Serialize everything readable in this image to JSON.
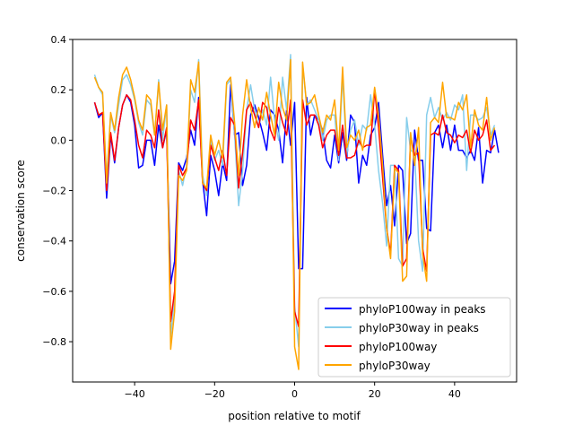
{
  "chart_data": {
    "type": "line",
    "title": "",
    "xlabel": "position relative to motif",
    "ylabel": "conservation score",
    "xlim": [
      -55.5,
      55.5
    ],
    "ylim": [
      -0.96,
      0.4
    ],
    "xticks": [
      -40,
      -20,
      0,
      20,
      40
    ],
    "xtick_labels": [
      "−40",
      "−20",
      "0",
      "20",
      "40"
    ],
    "yticks": [
      0.4,
      0.2,
      0.0,
      -0.2,
      -0.4,
      -0.6,
      -0.8
    ],
    "ytick_labels": [
      "0.4",
      "0.2",
      "0.0",
      "−0.2",
      "−0.4",
      "−0.6",
      "−0.8"
    ],
    "grid": false,
    "legend_position": "lower-right",
    "x_start": -50,
    "x_end": 50,
    "series": [
      {
        "name": "phyloP100way in peaks",
        "color": "#0000ff",
        "values": [
          0.15,
          0.09,
          0.11,
          -0.23,
          0.02,
          -0.09,
          0.05,
          0.14,
          0.18,
          0.15,
          0.06,
          -0.11,
          -0.1,
          0.0,
          0.0,
          -0.1,
          0.06,
          -0.03,
          0.04,
          -0.57,
          -0.48,
          -0.09,
          -0.12,
          -0.07,
          0.04,
          -0.02,
          0.17,
          -0.16,
          -0.3,
          -0.06,
          -0.12,
          -0.22,
          -0.09,
          -0.16,
          0.22,
          0.02,
          0.03,
          -0.18,
          -0.1,
          0.1,
          0.14,
          0.09,
          0.03,
          -0.04,
          0.12,
          0.1,
          0.04,
          -0.09,
          0.12,
          -0.02,
          0.15,
          -0.51,
          -0.51,
          0.17,
          0.02,
          0.1,
          0.08,
          0.04,
          -0.08,
          -0.11,
          0.02,
          -0.09,
          0.03,
          -0.08,
          0.1,
          0.07,
          -0.17,
          -0.06,
          -0.1,
          0.02,
          0.05,
          0.15,
          -0.06,
          -0.26,
          -0.18,
          -0.34,
          -0.1,
          -0.12,
          -0.41,
          -0.37,
          0.04,
          -0.08,
          -0.08,
          -0.35,
          -0.36,
          0.03,
          0.06,
          -0.03,
          0.06,
          -0.04,
          0.06,
          -0.04,
          -0.04,
          -0.07,
          -0.04,
          -0.08,
          0.05,
          -0.17,
          -0.04,
          -0.05,
          0.04,
          -0.05
        ]
      },
      {
        "name": "phyloP30way in peaks",
        "color": "#87ceeb",
        "values": [
          0.26,
          0.21,
          0.18,
          -0.15,
          0.1,
          0.03,
          0.14,
          0.24,
          0.26,
          0.22,
          0.16,
          0.07,
          0.02,
          0.16,
          0.14,
          0.02,
          0.24,
          0.0,
          0.14,
          -0.78,
          -0.62,
          -0.12,
          -0.18,
          -0.1,
          0.2,
          0.15,
          0.32,
          -0.14,
          -0.22,
          0.0,
          -0.08,
          -0.04,
          -0.1,
          0.22,
          0.24,
          0.02,
          -0.26,
          -0.12,
          0.12,
          0.22,
          0.12,
          0.05,
          0.12,
          0.06,
          0.25,
          0.08,
          0.0,
          0.25,
          0.12,
          0.34,
          -0.66,
          -0.82,
          0.3,
          0.14,
          0.16,
          0.12,
          0.08,
          0.0,
          0.08,
          0.1,
          0.1,
          -0.08,
          0.26,
          -0.06,
          0.04,
          0.08,
          -0.02,
          0.06,
          0.04,
          0.18,
          0.06,
          -0.12,
          -0.25,
          -0.42,
          -0.1,
          -0.1,
          -0.47,
          -0.5,
          0.09,
          -0.04,
          -0.05,
          -0.4,
          -0.52,
          0.1,
          0.17,
          0.09,
          0.13,
          0.08,
          0.11,
          0.08,
          0.14,
          0.12,
          0.18,
          -0.12,
          0.1,
          0.1,
          0.08,
          0.09,
          0.13,
          0.02,
          0.06
        ]
      },
      {
        "name": "phyloP100way",
        "color": "#ff0000",
        "values": [
          0.15,
          0.1,
          0.11,
          -0.2,
          0.03,
          -0.08,
          0.05,
          0.14,
          0.18,
          0.16,
          0.08,
          -0.02,
          -0.07,
          0.04,
          0.02,
          -0.03,
          0.12,
          -0.03,
          0.05,
          -0.72,
          -0.6,
          -0.1,
          -0.14,
          -0.11,
          0.08,
          0.04,
          0.16,
          -0.17,
          -0.2,
          -0.02,
          -0.07,
          -0.12,
          -0.04,
          -0.14,
          0.09,
          0.06,
          -0.19,
          -0.05,
          0.12,
          0.15,
          0.1,
          0.05,
          0.15,
          0.13,
          0.04,
          0.0,
          0.13,
          0.07,
          0.02,
          0.16,
          -0.68,
          -0.74,
          0.16,
          0.06,
          0.1,
          0.1,
          0.06,
          -0.03,
          0.02,
          0.04,
          0.04,
          -0.06,
          0.06,
          -0.07,
          -0.07,
          -0.06,
          0.0,
          -0.03,
          -0.02,
          -0.02,
          0.2,
          0.05,
          -0.15,
          -0.35,
          -0.45,
          -0.1,
          -0.12,
          -0.5,
          -0.47,
          0.02,
          -0.06,
          -0.05,
          -0.43,
          -0.52,
          0.02,
          0.03,
          0.02,
          0.1,
          0.03,
          0.02,
          -0.01,
          0.02,
          0.01,
          0.04,
          -0.05,
          0.04,
          0.0,
          0.02,
          0.08,
          -0.04,
          -0.02
        ]
      },
      {
        "name": "phyloP30way",
        "color": "#ffa500",
        "values": [
          0.25,
          0.21,
          0.19,
          -0.17,
          0.11,
          0.04,
          0.17,
          0.26,
          0.29,
          0.24,
          0.17,
          0.08,
          0.04,
          0.18,
          0.16,
          0.02,
          0.23,
          0.04,
          0.14,
          -0.83,
          -0.68,
          -0.14,
          -0.16,
          -0.12,
          0.24,
          0.19,
          0.31,
          -0.17,
          -0.19,
          0.02,
          -0.06,
          0.0,
          -0.07,
          0.23,
          0.25,
          0.07,
          -0.14,
          0.1,
          0.24,
          0.13,
          0.05,
          0.13,
          0.08,
          0.19,
          0.1,
          0.02,
          0.23,
          0.13,
          0.08,
          0.32,
          -0.82,
          -0.91,
          0.31,
          0.14,
          0.15,
          0.18,
          0.1,
          0.03,
          0.1,
          0.08,
          0.16,
          -0.04,
          0.29,
          -0.03,
          0.02,
          0.0,
          0.04,
          -0.04,
          0.05,
          0.06,
          0.21,
          0.1,
          -0.1,
          -0.35,
          -0.47,
          -0.11,
          -0.13,
          -0.56,
          -0.54,
          0.03,
          -0.1,
          0.05,
          -0.45,
          -0.56,
          0.07,
          0.09,
          0.07,
          0.23,
          0.09,
          0.09,
          0.08,
          0.15,
          0.12,
          0.18,
          -0.03,
          0.12,
          0.06,
          0.04,
          0.17,
          0.0,
          0.05
        ]
      }
    ]
  }
}
